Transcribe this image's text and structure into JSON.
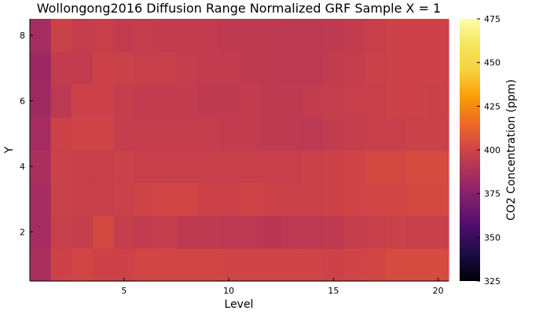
{
  "chart_data": {
    "type": "heatmap",
    "title": "Wollongong2016 Diffusion Range Normalized GRF Sample X = 1",
    "xlabel": "Level",
    "ylabel": "Y",
    "colorbar_label": "CO2 Concentration (ppm)",
    "x_ticks": [
      "5",
      "10",
      "15",
      "20"
    ],
    "y_ticks": [
      "2",
      "4",
      "6",
      "8"
    ],
    "colorbar_ticks": [
      "325",
      "350",
      "375",
      "400",
      "425",
      "450",
      "475"
    ],
    "colormap": "inferno",
    "clim": [
      325,
      475
    ],
    "x": [
      1,
      2,
      3,
      4,
      5,
      6,
      7,
      8,
      9,
      10,
      11,
      12,
      13,
      14,
      15,
      16,
      17,
      18,
      19,
      20
    ],
    "y": [
      1,
      2,
      3,
      4,
      5,
      6,
      7,
      8
    ],
    "values": [
      [
        387,
        399,
        401,
        399,
        399,
        401,
        401,
        401,
        401,
        400,
        400,
        400,
        400,
        400,
        399,
        400,
        401,
        403,
        403,
        403
      ],
      [
        385,
        397,
        396,
        402,
        396,
        395,
        396,
        394,
        394,
        393,
        393,
        392,
        393,
        393,
        394,
        396,
        397,
        398,
        397,
        397
      ],
      [
        385,
        398,
        397,
        397,
        398,
        400,
        401,
        401,
        399,
        399,
        400,
        399,
        398,
        398,
        399,
        400,
        401,
        401,
        402,
        402
      ],
      [
        387,
        398,
        397,
        397,
        398,
        397,
        397,
        397,
        397,
        397,
        397,
        397,
        397,
        398,
        399,
        400,
        402,
        402,
        403,
        403
      ],
      [
        385,
        399,
        400,
        400,
        396,
        396,
        396,
        396,
        396,
        395,
        395,
        394,
        394,
        393,
        395,
        396,
        397,
        397,
        398,
        398
      ],
      [
        383,
        393,
        399,
        399,
        396,
        395,
        395,
        395,
        394,
        394,
        395,
        394,
        394,
        395,
        396,
        397,
        397,
        399,
        399,
        398
      ],
      [
        382,
        395,
        395,
        399,
        398,
        397,
        397,
        396,
        395,
        395,
        394,
        394,
        393,
        393,
        395,
        396,
        398,
        399,
        399,
        399
      ],
      [
        385,
        398,
        396,
        397,
        395,
        396,
        395,
        395,
        395,
        394,
        394,
        394,
        393,
        393,
        394,
        395,
        397,
        399,
        399,
        399
      ]
    ]
  }
}
